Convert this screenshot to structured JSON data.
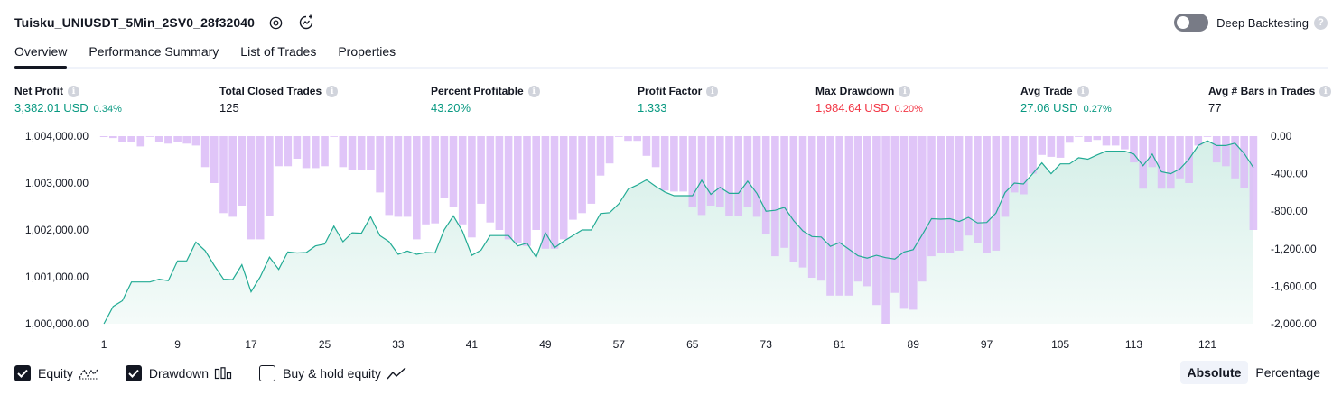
{
  "header": {
    "title": "Tuisku_UNIUSDT_5Min_2SV0_28f32040"
  },
  "deep_backtesting": {
    "label": "Deep Backtesting",
    "enabled": false
  },
  "tabs": [
    {
      "label": "Overview",
      "active": true
    },
    {
      "label": "Performance Summary",
      "active": false
    },
    {
      "label": "List of Trades",
      "active": false
    },
    {
      "label": "Properties",
      "active": false
    }
  ],
  "stats": [
    {
      "label": "Net Profit",
      "value": "3,382.01 USD",
      "pct": "0.34%",
      "color": "green"
    },
    {
      "label": "Total Closed Trades",
      "value": "125",
      "pct": "",
      "color": "dark"
    },
    {
      "label": "Percent Profitable",
      "value": "43.20%",
      "pct": "",
      "color": "green"
    },
    {
      "label": "Profit Factor",
      "value": "1.333",
      "pct": "",
      "color": "green"
    },
    {
      "label": "Max Drawdown",
      "value": "1,984.64 USD",
      "pct": "0.20%",
      "color": "red"
    },
    {
      "label": "Avg Trade",
      "value": "27.06 USD",
      "pct": "0.27%",
      "color": "green"
    },
    {
      "label": "Avg # Bars in Trades",
      "value": "77",
      "pct": "",
      "color": "dark"
    }
  ],
  "legend": {
    "equity": "Equity",
    "drawdown": "Drawdown",
    "buy_hold": "Buy & hold equity",
    "equity_checked": true,
    "drawdown_checked": true,
    "buy_hold_checked": false
  },
  "modes": {
    "absolute": "Absolute",
    "percentage": "Percentage",
    "active": "absolute"
  },
  "colors": {
    "equity_line": "#22ab94",
    "equity_fill": "#d5efe8",
    "drawdown_bar": "#dcbdf7",
    "green": "#089981",
    "red": "#f23645"
  },
  "chart_data": {
    "type": "area",
    "x_ticks": [
      "1",
      "9",
      "17",
      "25",
      "33",
      "41",
      "49",
      "57",
      "65",
      "73",
      "81",
      "89",
      "97",
      "105",
      "113",
      "121"
    ],
    "left_axis": {
      "label": "Equity",
      "ticks": [
        "1,000,000.00",
        "1,001,000.00",
        "1,002,000.00",
        "1,003,000.00",
        "1,004,000.00"
      ],
      "ylim": [
        1000000,
        1004000
      ]
    },
    "right_axis": {
      "label": "Drawdown",
      "ticks": [
        "0.00",
        "-400.00",
        "-800.00",
        "-1,200.00",
        "-1,600.00",
        "-2,000.00"
      ],
      "ylim": [
        -2000,
        0
      ]
    },
    "series": [
      {
        "name": "Equity",
        "type": "area",
        "x": [
          1,
          2,
          3,
          4,
          5,
          6,
          7,
          8,
          9,
          10,
          11,
          12,
          13,
          14,
          15,
          16,
          17,
          18,
          19,
          20,
          21,
          22,
          23,
          24,
          25,
          26,
          27,
          28,
          29,
          30,
          31,
          32,
          33,
          34,
          35,
          36,
          37,
          38,
          39,
          40,
          41,
          42,
          43,
          44,
          45,
          46,
          47,
          48,
          49,
          50,
          51,
          52,
          53,
          54,
          55,
          56,
          57,
          58,
          59,
          60,
          61,
          62,
          63,
          64,
          65,
          66,
          67,
          68,
          69,
          70,
          71,
          72,
          73,
          74,
          75,
          76,
          77,
          78,
          79,
          80,
          81,
          82,
          83,
          84,
          85,
          86,
          87,
          88,
          89,
          90,
          91,
          92,
          93,
          94,
          95,
          96,
          97,
          98,
          99,
          100,
          101,
          102,
          103,
          104,
          105,
          106,
          107,
          108,
          109,
          110,
          111,
          112,
          113,
          114,
          115,
          116,
          117,
          118,
          119,
          120,
          121,
          122,
          123,
          124,
          125,
          126
        ],
        "values": [
          1000000,
          1000370,
          1000490,
          1000890,
          1000890,
          1000890,
          1000950,
          1000920,
          1001340,
          1001340,
          1001740,
          1001560,
          1001240,
          1000950,
          1000940,
          1001260,
          1000680,
          1001000,
          1001420,
          1001160,
          1001530,
          1001510,
          1001520,
          1001660,
          1001700,
          1002080,
          1001750,
          1001940,
          1001930,
          1002280,
          1001880,
          1001750,
          1001480,
          1001550,
          1001480,
          1001520,
          1001510,
          1002000,
          1002300,
          1001970,
          1001460,
          1001570,
          1001880,
          1001880,
          1001880,
          1001660,
          1001720,
          1001420,
          1001940,
          1001620,
          1001760,
          1001880,
          1002000,
          1002000,
          1002350,
          1002370,
          1002560,
          1002870,
          1002960,
          1003070,
          1002930,
          1002810,
          1002730,
          1002730,
          1002730,
          1003060,
          1002760,
          1002910,
          1002780,
          1002780,
          1003040,
          1002780,
          1002400,
          1002420,
          1002480,
          1002200,
          1001980,
          1001860,
          1001850,
          1001650,
          1001730,
          1001590,
          1001450,
          1001400,
          1001460,
          1001410,
          1001380,
          1001530,
          1001580,
          1001900,
          1002240,
          1002230,
          1002240,
          1002180,
          1002270,
          1002150,
          1002160,
          1002360,
          1002800,
          1003000,
          1002980,
          1003200,
          1003430,
          1003200,
          1003410,
          1003410,
          1003540,
          1003510,
          1003600,
          1003680,
          1003680,
          1003680,
          1003620,
          1003370,
          1003620,
          1003240,
          1003200,
          1003300,
          1003510,
          1003800,
          1003900,
          1003800,
          1003800,
          1003850,
          1003630,
          1003330
        ]
      },
      {
        "name": "Drawdown",
        "type": "bar",
        "x": [
          1,
          2,
          3,
          4,
          5,
          6,
          7,
          8,
          9,
          10,
          11,
          12,
          13,
          14,
          15,
          16,
          17,
          18,
          19,
          20,
          21,
          22,
          23,
          24,
          25,
          26,
          27,
          28,
          29,
          30,
          31,
          32,
          33,
          34,
          35,
          36,
          37,
          38,
          39,
          40,
          41,
          42,
          43,
          44,
          45,
          46,
          47,
          48,
          49,
          50,
          51,
          52,
          53,
          54,
          55,
          56,
          57,
          58,
          59,
          60,
          61,
          62,
          63,
          64,
          65,
          66,
          67,
          68,
          69,
          70,
          71,
          72,
          73,
          74,
          75,
          76,
          77,
          78,
          79,
          80,
          81,
          82,
          83,
          84,
          85,
          86,
          87,
          88,
          89,
          90,
          91,
          92,
          93,
          94,
          95,
          96,
          97,
          98,
          99,
          100,
          101,
          102,
          103,
          104,
          105,
          106,
          107,
          108,
          109,
          110,
          111,
          112,
          113,
          114,
          115,
          116,
          117,
          118,
          119,
          120,
          121,
          122,
          123,
          124,
          125,
          126
        ],
        "values": [
          -10,
          -20,
          -60,
          -60,
          -110,
          0,
          -60,
          -80,
          -60,
          -80,
          -100,
          -330,
          -500,
          -820,
          -860,
          -740,
          -1100,
          -1100,
          -850,
          -320,
          -320,
          -240,
          -340,
          -340,
          -320,
          0,
          -330,
          -360,
          -360,
          -360,
          -600,
          -840,
          -860,
          -860,
          -1100,
          -940,
          -930,
          -660,
          -760,
          -940,
          -1080,
          -720,
          -920,
          -1000,
          -1100,
          -1140,
          -1170,
          -1000,
          -1200,
          -1200,
          -1100,
          -890,
          -820,
          -720,
          -420,
          -290,
          0,
          -50,
          -50,
          -210,
          -330,
          -580,
          -590,
          -590,
          -760,
          -840,
          -740,
          -760,
          -850,
          -850,
          -760,
          -860,
          -1040,
          -1280,
          -1190,
          -1340,
          -1400,
          -1510,
          -1540,
          -1700,
          -1700,
          -1700,
          -1550,
          -1600,
          -1800,
          -2000,
          -1670,
          -1840,
          -1850,
          -1550,
          -1280,
          -1240,
          -1250,
          -1220,
          -1060,
          -1140,
          -1250,
          -1220,
          -860,
          -600,
          -620,
          -400,
          -200,
          -220,
          -230,
          -70,
          0,
          -60,
          -40,
          -100,
          -100,
          -140,
          -280,
          -560,
          -330,
          -560,
          -560,
          -450,
          -500,
          -100,
          0,
          -280,
          -320,
          -450,
          -550,
          -1000
        ]
      }
    ],
    "grid": false,
    "legend_position": "bottom-left"
  }
}
